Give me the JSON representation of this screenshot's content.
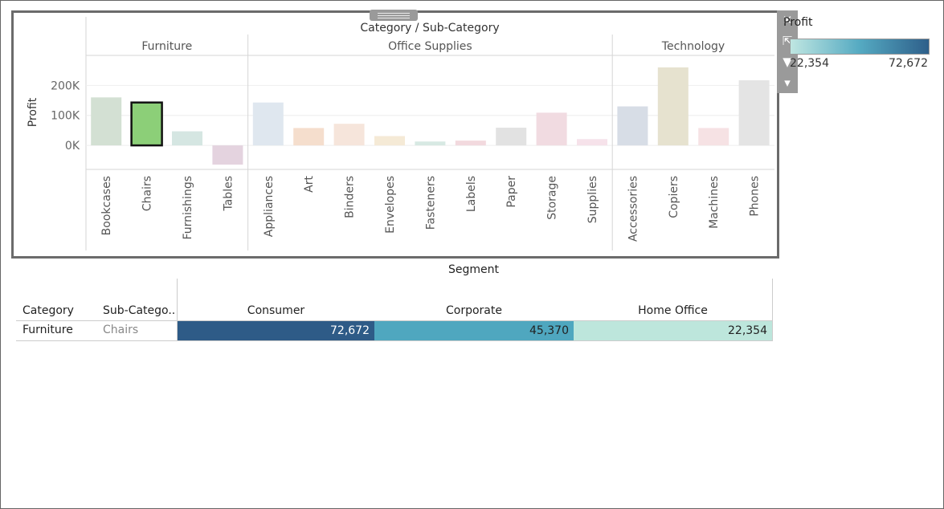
{
  "chart_data": {
    "type": "bar",
    "title": "Category / Sub-Category",
    "ylabel": "Profit",
    "ylim": [
      -80000,
      300000
    ],
    "yticks": [
      {
        "value": 200000,
        "label": "200K"
      },
      {
        "value": 100000,
        "label": "100K"
      },
      {
        "value": 0,
        "label": "0K"
      }
    ],
    "groups": [
      {
        "name": "Furniture",
        "items": [
          {
            "label": "Bookcases",
            "value": 160000,
            "color": "#d3e0d3",
            "selected": false
          },
          {
            "label": "Chairs",
            "value": 143000,
            "color": "#8ccf78",
            "selected": true
          },
          {
            "label": "Furnishings",
            "value": 47000,
            "color": "#d5e6e2",
            "selected": false
          },
          {
            "label": "Tables",
            "value": -64000,
            "color": "#e4d3df",
            "selected": false
          }
        ]
      },
      {
        "name": "Office Supplies",
        "items": [
          {
            "label": "Appliances",
            "value": 143000,
            "color": "#dfe7ef",
            "selected": false
          },
          {
            "label": "Art",
            "value": 58000,
            "color": "#f5decd",
            "selected": false
          },
          {
            "label": "Binders",
            "value": 72000,
            "color": "#f6e5db",
            "selected": false
          },
          {
            "label": "Envelopes",
            "value": 31000,
            "color": "#f5ead6",
            "selected": false
          },
          {
            "label": "Fasteners",
            "value": 13000,
            "color": "#d7e9e3",
            "selected": false
          },
          {
            "label": "Labels",
            "value": 16000,
            "color": "#f2d9de",
            "selected": false
          },
          {
            "label": "Paper",
            "value": 59000,
            "color": "#e2e2e2",
            "selected": false
          },
          {
            "label": "Storage",
            "value": 109000,
            "color": "#f1dbe1",
            "selected": false
          },
          {
            "label": "Supplies",
            "value": 21000,
            "color": "#f6e2ea",
            "selected": false
          }
        ]
      },
      {
        "name": "Technology",
        "items": [
          {
            "label": "Accessories",
            "value": 130000,
            "color": "#d7dde6",
            "selected": false
          },
          {
            "label": "Copiers",
            "value": 260000,
            "color": "#e6e2cf",
            "selected": false
          },
          {
            "label": "Machines",
            "value": 58000,
            "color": "#f6e2e4",
            "selected": false
          },
          {
            "label": "Phones",
            "value": 217000,
            "color": "#e4e4e4",
            "selected": false
          }
        ]
      }
    ]
  },
  "legend": {
    "title": "Profit",
    "min_label": "22,354",
    "max_label": "72,672"
  },
  "toolbar": {
    "close": "✕",
    "popout": "⇱",
    "filter": "▼",
    "more": "▾"
  },
  "table": {
    "segment_title": "Segment",
    "category_header": "Category",
    "subcategory_header": "Sub-Catego..",
    "columns": [
      "Consumer",
      "Corporate",
      "Home Office"
    ],
    "row": {
      "category": "Furniture",
      "subcategory": "Chairs"
    },
    "cells": [
      {
        "text": "72,672",
        "value": 72672,
        "color": "#2e5b87",
        "text_color": "#ffffff"
      },
      {
        "text": "45,370",
        "value": 45370,
        "color": "#4fa7bf",
        "text_color": "#222222"
      },
      {
        "text": "22,354",
        "value": 22354,
        "color": "#bde6dc",
        "text_color": "#222222"
      }
    ]
  }
}
